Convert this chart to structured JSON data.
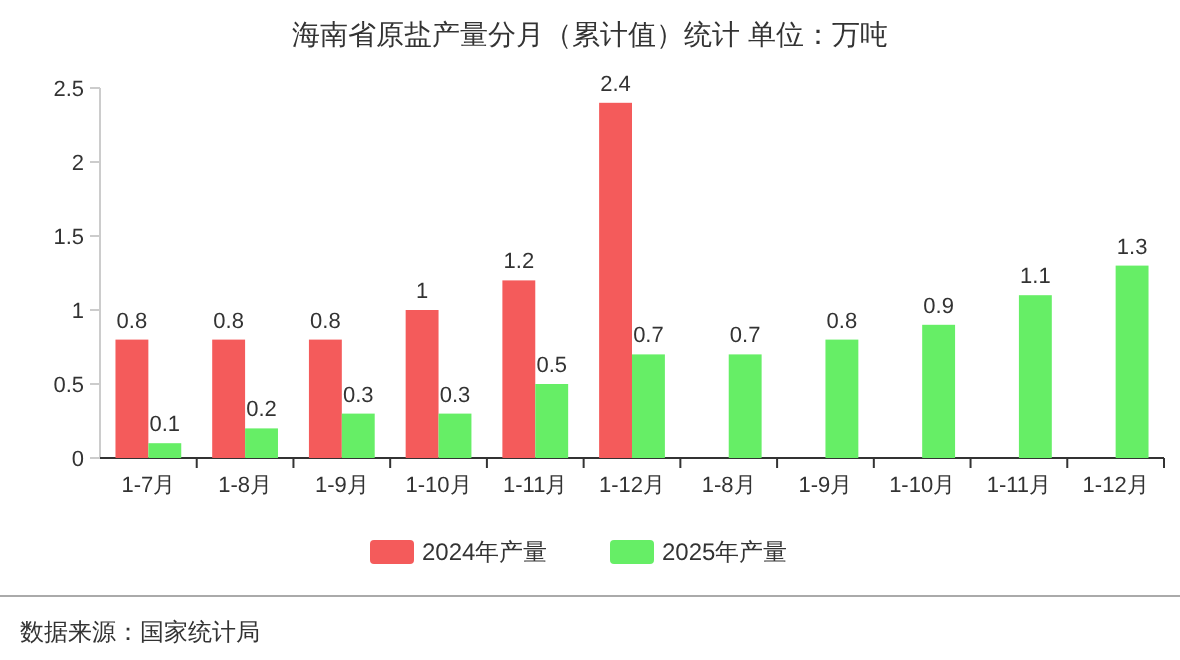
{
  "chart_data": {
    "type": "bar",
    "title": "海南省原盐产量分月（累计值）统计 单位：万吨",
    "categories": [
      "1-7月",
      "1-8月",
      "1-9月",
      "1-10月",
      "1-11月",
      "1-12月",
      "1-8月",
      "1-9月",
      "1-10月",
      "1-11月",
      "1-12月"
    ],
    "series": [
      {
        "name": "2024年产量",
        "color": "#f45b5b",
        "values": [
          0.8,
          0.8,
          0.8,
          1,
          1.2,
          2.4,
          null,
          null,
          null,
          null,
          null
        ]
      },
      {
        "name": "2025年产量",
        "color": "#66ee66",
        "values": [
          0.1,
          0.2,
          0.3,
          0.3,
          0.5,
          0.7,
          0.7,
          0.8,
          0.9,
          1.1,
          1.3
        ]
      }
    ],
    "ylim": [
      0,
      2.5
    ],
    "yticks": [
      0,
      0.5,
      1,
      1.5,
      2,
      2.5
    ],
    "legend": "bottom",
    "data_labels": true,
    "annotations": [
      "数据来源：国家统计局"
    ]
  }
}
